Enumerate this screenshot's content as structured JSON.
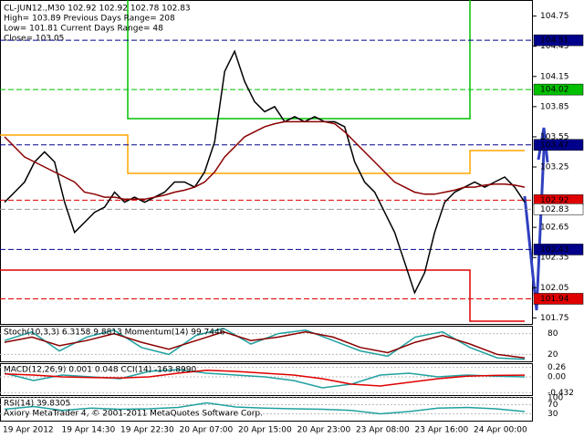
{
  "chart_data": {
    "type": "line",
    "info": [
      "CL-JUN12.,M30  102.92 102.92 102.78 102.83",
      "High= 103.89    Previous Days Range= 208",
      "Low= 101.81    Current Days Range= 48",
      "Close= 103.05"
    ],
    "ylim": [
      101.69,
      104.91
    ],
    "yticks": [
      104.75,
      104.45,
      104.15,
      103.85,
      103.55,
      103.25,
      102.65,
      102.35,
      102.05,
      101.75
    ],
    "levels": [
      {
        "value": 104.51,
        "color": "#00008b"
      },
      {
        "value": 104.02,
        "color": "#00c000"
      },
      {
        "value": 103.47,
        "color": "#00008b"
      },
      {
        "value": 102.92,
        "color": "#e00000"
      },
      {
        "value": 102.83,
        "color": "#ffffff"
      },
      {
        "value": 102.43,
        "color": "#00008b"
      },
      {
        "value": 101.94,
        "color": "#e00000"
      }
    ],
    "series": [
      {
        "color": "#000000",
        "values": [
          102.9,
          103.0,
          103.1,
          103.3,
          103.4,
          103.3,
          102.9,
          102.6,
          102.7,
          102.8,
          102.85,
          103.0,
          102.9,
          102.95,
          102.9,
          102.95,
          103.0,
          103.1,
          103.1,
          103.05,
          103.2,
          103.5,
          104.2,
          104.4,
          104.1,
          103.9,
          103.8,
          103.85,
          103.7,
          103.75,
          103.7,
          103.75,
          103.7,
          103.7,
          103.65,
          103.3,
          103.1,
          103.0,
          102.8,
          102.6,
          102.3,
          102.0,
          102.2,
          102.6,
          102.9,
          103.0,
          103.05,
          103.1,
          103.05,
          103.1,
          103.15,
          103.05,
          102.9
        ]
      },
      {
        "color": "#8b0000",
        "values": [
          103.55,
          103.45,
          103.35,
          103.3,
          103.25,
          103.2,
          103.15,
          103.1,
          103.0,
          102.98,
          102.95,
          102.95,
          102.93,
          102.93,
          102.93,
          102.95,
          102.97,
          103.0,
          103.02,
          103.05,
          103.1,
          103.2,
          103.35,
          103.45,
          103.55,
          103.6,
          103.65,
          103.68,
          103.7,
          103.7,
          103.7,
          103.7,
          103.7,
          103.68,
          103.6,
          103.5,
          103.4,
          103.3,
          103.2,
          103.1,
          103.05,
          103.0,
          102.98,
          102.98,
          103.0,
          103.02,
          103.05,
          103.05,
          103.07,
          103.08,
          103.08,
          103.07,
          103.05
        ]
      }
    ],
    "x_labels": [
      "19 Apr 2012",
      "19 Apr 14:30",
      "19 Apr 22:30",
      "20 Apr 07:00",
      "20 Apr 15:00",
      "20 Apr 23:00",
      "23 Apr 08:00",
      "23 Apr 16:00",
      "24 Apr 00:00"
    ],
    "copyright": "Axiory MetaTrader 4, © 2001-2011 MetaQuotes Software Corp.",
    "indicators": [
      {
        "label": "Stoch(10,3,3) 6.3158 9.8813  Momentum(14) 99.7446",
        "ylim": [
          0,
          100
        ],
        "yticks": [
          80,
          20
        ],
        "series": [
          {
            "color": "#20a0a0",
            "values": [
              60,
              85,
              30,
              70,
              90,
              40,
              20,
              75,
              95,
              50,
              80,
              90,
              60,
              30,
              15,
              70,
              85,
              40,
              10,
              6
            ]
          },
          {
            "color": "#8b0000",
            "values": [
              55,
              70,
              45,
              60,
              80,
              55,
              35,
              60,
              85,
              60,
              70,
              85,
              70,
              40,
              25,
              55,
              75,
              50,
              20,
              10
            ]
          }
        ]
      },
      {
        "label": "MACD(12,26,9) 0.001 0.048  CCI(14) -163.8990",
        "ylim": [
          -0.5,
          0.35
        ],
        "yticks": [
          0.26,
          {
            "value": 0,
            "label": "0.00"
          },
          -0.432
        ],
        "series": [
          {
            "color": "#20a0a0",
            "values": [
              0.1,
              -0.1,
              0.05,
              0.0,
              -0.05,
              0.15,
              0.2,
              0.1,
              0.05,
              0.0,
              -0.1,
              -0.3,
              -0.2,
              0.05,
              0.1,
              0.0,
              0.05,
              0.02,
              0.001
            ]
          },
          {
            "color": "#e00000",
            "values": [
              0.08,
              0.05,
              0.0,
              -0.02,
              -0.03,
              0.0,
              0.1,
              0.18,
              0.15,
              0.1,
              0.05,
              -0.05,
              -0.2,
              -0.25,
              -0.15,
              -0.05,
              0.02,
              0.04,
              0.048
            ]
          }
        ]
      },
      {
        "label": "RSI(14) 39.8305",
        "ylim": [
          0,
          100
        ],
        "yticks": [
          100,
          70,
          30
        ],
        "series": [
          {
            "color": "#20a0a0",
            "values": [
              50,
              62,
              45,
              55,
              50,
              52,
              58,
              78,
              60,
              55,
              52,
              50,
              45,
              30,
              40,
              55,
              58,
              52,
              39.8305
            ]
          }
        ]
      }
    ]
  }
}
